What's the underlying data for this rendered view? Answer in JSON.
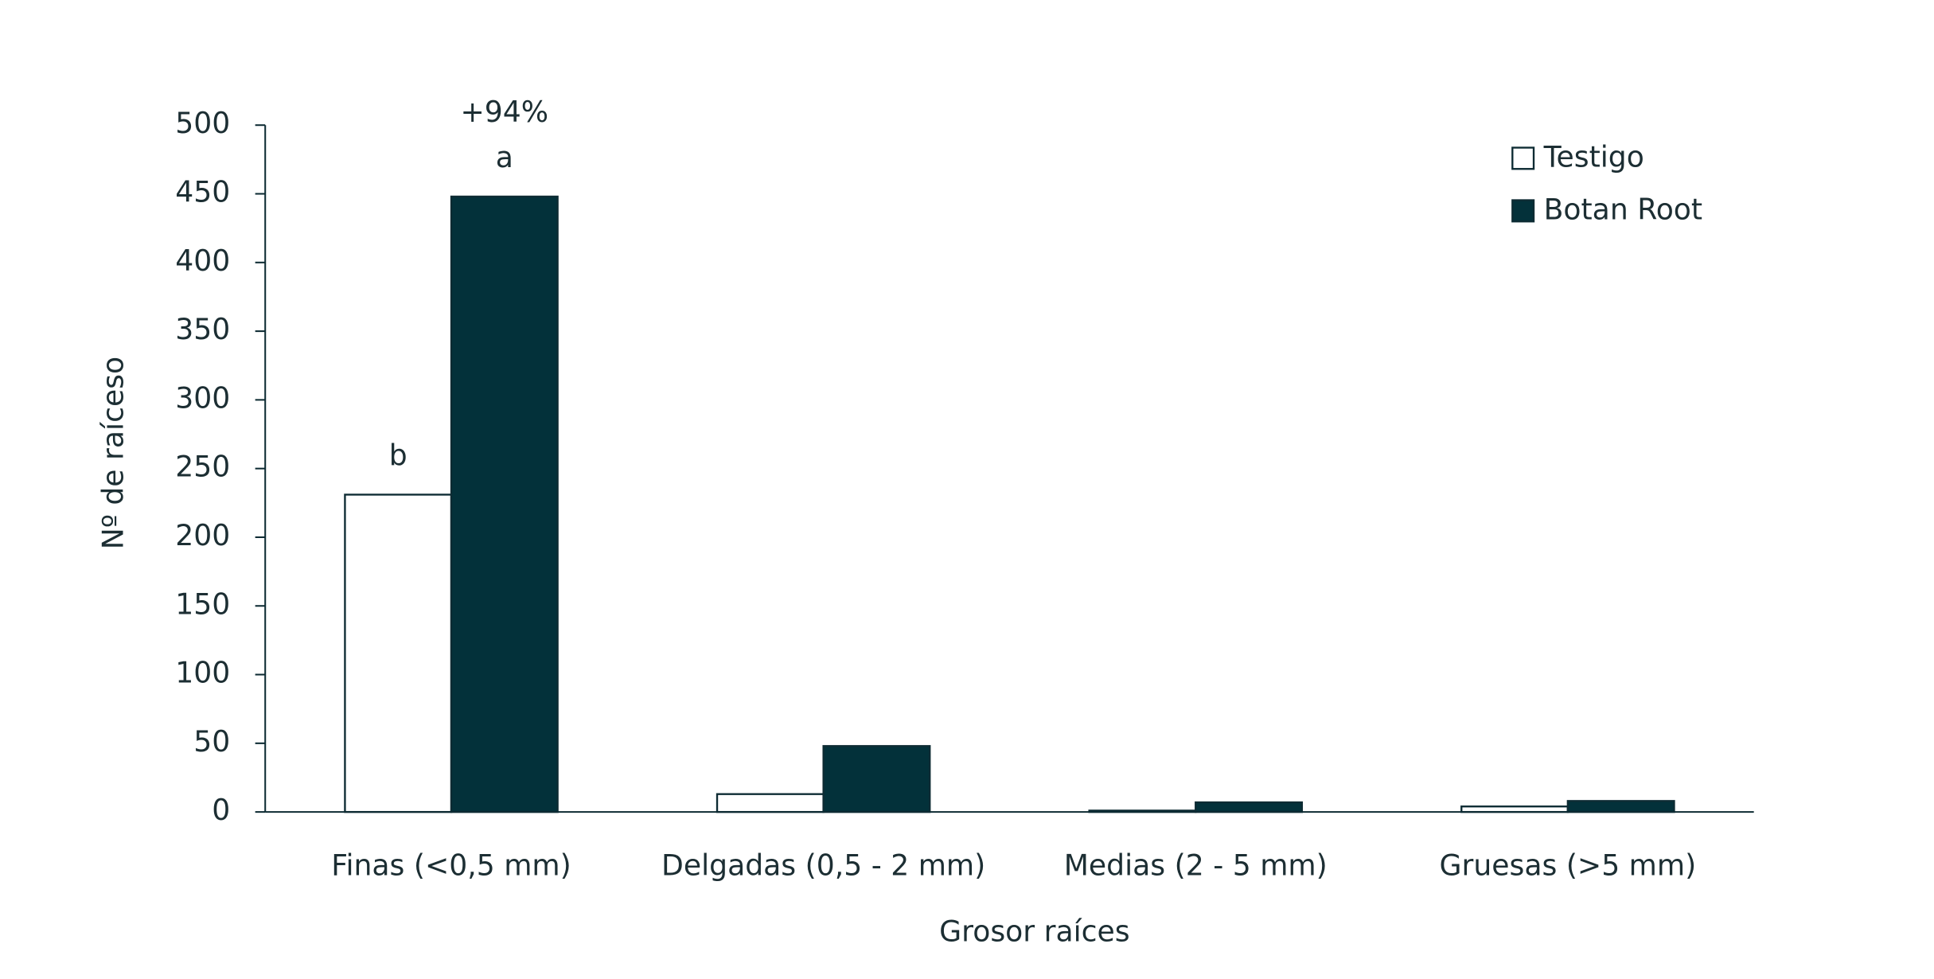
{
  "chart_data": {
    "type": "bar",
    "x_label": "Grosor raíces",
    "y_label": "Nº de raíceso",
    "categories": [
      "Finas (<0,5 mm)",
      "Delgadas (0,5 - 2 mm)",
      "Medias (2 - 5 mm)",
      "Gruesas (>5 mm)"
    ],
    "series": [
      {
        "name": "Testigo",
        "color": "#ffffff",
        "values": [
          231,
          13,
          1,
          4
        ]
      },
      {
        "name": "Botan Root",
        "color": "#03313a",
        "values": [
          448,
          48,
          7,
          8
        ]
      }
    ],
    "annotations": [
      {
        "text": "b",
        "series": 0,
        "index": 0
      },
      {
        "text": "a",
        "series": 1,
        "index": 0
      },
      {
        "text": "+94%",
        "series": 1,
        "index": 0
      }
    ],
    "ylim": [
      0,
      500
    ],
    "yticks": [
      0,
      50,
      100,
      150,
      200,
      250,
      300,
      350,
      400,
      450,
      500
    ],
    "legend": "top-right"
  }
}
